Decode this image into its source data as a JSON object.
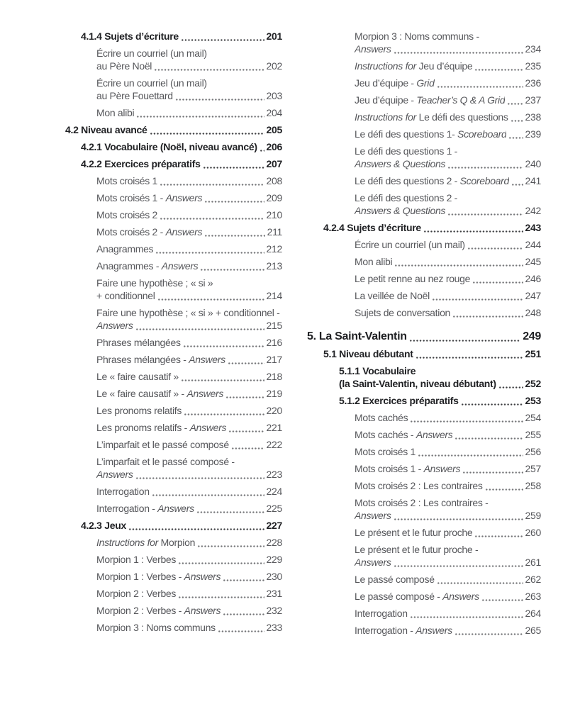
{
  "colors": {
    "background": "#ffffff",
    "body_text": "#55565a",
    "heading_text": "#202124",
    "leader_dot": "#737477",
    "leader_dot_bold": "#3c3d40"
  },
  "toc": {
    "columns": [
      {
        "name": "left",
        "entries": [
          {
            "level": 2,
            "bold": true,
            "lines": [
              [
                {
                  "t": "4.1.4 Sujets d’écriture"
                }
              ]
            ],
            "page": "201"
          },
          {
            "level": 3,
            "lines": [
              [
                {
                  "t": "Écrire un courriel (un mail)"
                }
              ],
              [
                {
                  "t": "au Père Noël"
                }
              ]
            ],
            "page": "202"
          },
          {
            "level": 3,
            "lines": [
              [
                {
                  "t": "Écrire un courriel (un mail)"
                }
              ],
              [
                {
                  "t": "au Père Fouettard"
                }
              ]
            ],
            "page": "203"
          },
          {
            "level": 3,
            "lines": [
              [
                {
                  "t": "Mon alibi"
                }
              ]
            ],
            "page": "204"
          },
          {
            "level": 1,
            "bold": true,
            "lines": [
              [
                {
                  "t": "4.2 Niveau avancé"
                }
              ]
            ],
            "page": "205"
          },
          {
            "level": 2,
            "bold": true,
            "lines": [
              [
                {
                  "t": "4.2.1 Vocabulaire (Noël, niveau avancé)"
                }
              ]
            ],
            "page": "206"
          },
          {
            "level": 2,
            "bold": true,
            "lines": [
              [
                {
                  "t": "4.2.2 Exercices préparatifs"
                }
              ]
            ],
            "page": "207"
          },
          {
            "level": 3,
            "lines": [
              [
                {
                  "t": "Mots croisés 1"
                }
              ]
            ],
            "page": "208"
          },
          {
            "level": 3,
            "lines": [
              [
                {
                  "t": "Mots croisés 1 - "
                },
                {
                  "t": "Answers",
                  "i": true
                }
              ]
            ],
            "page": "209"
          },
          {
            "level": 3,
            "lines": [
              [
                {
                  "t": "Mots croisés 2"
                }
              ]
            ],
            "page": "210"
          },
          {
            "level": 3,
            "lines": [
              [
                {
                  "t": "Mots croisés 2 - "
                },
                {
                  "t": "Answers",
                  "i": true
                }
              ]
            ],
            "page": "211"
          },
          {
            "level": 3,
            "lines": [
              [
                {
                  "t": "Anagrammes"
                }
              ]
            ],
            "page": "212"
          },
          {
            "level": 3,
            "lines": [
              [
                {
                  "t": "Anagrammes - "
                },
                {
                  "t": "Answers",
                  "i": true
                }
              ]
            ],
            "page": "213"
          },
          {
            "level": 3,
            "lines": [
              [
                {
                  "t": "Faire une hypothèse ; « si »"
                }
              ],
              [
                {
                  "t": "+ conditionnel"
                }
              ]
            ],
            "page": "214"
          },
          {
            "level": 3,
            "lines": [
              [
                {
                  "t": "Faire une hypothèse ; « si » + conditionnel -"
                }
              ],
              [
                {
                  "t": "Answers",
                  "i": true
                }
              ]
            ],
            "page": "215"
          },
          {
            "level": 3,
            "lines": [
              [
                {
                  "t": "Phrases mélangées"
                }
              ]
            ],
            "page": "216"
          },
          {
            "level": 3,
            "lines": [
              [
                {
                  "t": "Phrases mélangées - "
                },
                {
                  "t": "Answers",
                  "i": true
                }
              ]
            ],
            "page": "217"
          },
          {
            "level": 3,
            "lines": [
              [
                {
                  "t": "Le « faire causatif »"
                }
              ]
            ],
            "page": "218"
          },
          {
            "level": 3,
            "lines": [
              [
                {
                  "t": "Le « faire causatif » - "
                },
                {
                  "t": "Answers",
                  "i": true
                }
              ]
            ],
            "page": "219"
          },
          {
            "level": 3,
            "lines": [
              [
                {
                  "t": "Les pronoms relatifs"
                }
              ]
            ],
            "page": "220"
          },
          {
            "level": 3,
            "lines": [
              [
                {
                  "t": "Les pronoms relatifs - "
                },
                {
                  "t": "Answers",
                  "i": true
                }
              ]
            ],
            "page": "221"
          },
          {
            "level": 3,
            "lines": [
              [
                {
                  "t": "L’imparfait et le passé composé"
                }
              ]
            ],
            "page": "222"
          },
          {
            "level": 3,
            "lines": [
              [
                {
                  "t": "L’imparfait et le passé composé -"
                }
              ],
              [
                {
                  "t": "Answers",
                  "i": true
                }
              ]
            ],
            "page": "223"
          },
          {
            "level": 3,
            "lines": [
              [
                {
                  "t": "Interrogation"
                }
              ]
            ],
            "page": "224"
          },
          {
            "level": 3,
            "lines": [
              [
                {
                  "t": "Interrogation - "
                },
                {
                  "t": "Answers",
                  "i": true
                }
              ]
            ],
            "page": "225"
          },
          {
            "level": 2,
            "bold": true,
            "lines": [
              [
                {
                  "t": "4.2.3 Jeux"
                }
              ]
            ],
            "page": "227"
          },
          {
            "level": 3,
            "lines": [
              [
                {
                  "t": "Instructions for",
                  "i": true
                },
                {
                  "t": " Morpion"
                }
              ]
            ],
            "page": "228"
          },
          {
            "level": 3,
            "lines": [
              [
                {
                  "t": "Morpion 1 : Verbes"
                }
              ]
            ],
            "page": "229"
          },
          {
            "level": 3,
            "lines": [
              [
                {
                  "t": "Morpion 1 : Verbes - "
                },
                {
                  "t": "Answers",
                  "i": true
                }
              ]
            ],
            "page": "230"
          },
          {
            "level": 3,
            "lines": [
              [
                {
                  "t": "Morpion 2 : Verbes"
                }
              ]
            ],
            "page": "231"
          },
          {
            "level": 3,
            "lines": [
              [
                {
                  "t": "Morpion 2 : Verbes - "
                },
                {
                  "t": "Answers",
                  "i": true
                }
              ]
            ],
            "page": "232"
          },
          {
            "level": 3,
            "lines": [
              [
                {
                  "t": "Morpion 3 : Noms communs"
                }
              ]
            ],
            "page": "233"
          }
        ]
      },
      {
        "name": "right",
        "entries": [
          {
            "level": 3,
            "lines": [
              [
                {
                  "t": "Morpion 3 : Noms communs -"
                }
              ],
              [
                {
                  "t": "Answers",
                  "i": true
                }
              ]
            ],
            "page": "234"
          },
          {
            "level": 3,
            "lines": [
              [
                {
                  "t": "Instructions for",
                  "i": true
                },
                {
                  "t": " Jeu d’équipe"
                }
              ]
            ],
            "page": "235"
          },
          {
            "level": 3,
            "lines": [
              [
                {
                  "t": "Jeu d’équipe - "
                },
                {
                  "t": "Grid",
                  "i": true
                }
              ]
            ],
            "page": "236"
          },
          {
            "level": 3,
            "lines": [
              [
                {
                  "t": "Jeu d’équipe - "
                },
                {
                  "t": "Teacher’s Q & A Grid",
                  "i": true
                }
              ]
            ],
            "page": "237"
          },
          {
            "level": 3,
            "lines": [
              [
                {
                  "t": "Instructions for",
                  "i": true
                },
                {
                  "t": " Le défi des questions"
                }
              ]
            ],
            "page": "238"
          },
          {
            "level": 3,
            "lines": [
              [
                {
                  "t": "Le défi des questions 1- "
                },
                {
                  "t": "Scoreboard",
                  "i": true
                }
              ]
            ],
            "page": "239"
          },
          {
            "level": 3,
            "lines": [
              [
                {
                  "t": "Le défi des questions 1 -"
                }
              ],
              [
                {
                  "t": "Answers & Questions",
                  "i": true
                }
              ]
            ],
            "page": "240"
          },
          {
            "level": 3,
            "lines": [
              [
                {
                  "t": "Le défi des questions 2 - "
                },
                {
                  "t": "Scoreboard",
                  "i": true
                }
              ]
            ],
            "page": "241"
          },
          {
            "level": 3,
            "lines": [
              [
                {
                  "t": "Le défi des questions 2 -"
                }
              ],
              [
                {
                  "t": "Answers & Questions",
                  "i": true
                }
              ]
            ],
            "page": "242"
          },
          {
            "level": 1,
            "bold": true,
            "lines": [
              [
                {
                  "t": "4.2.4 Sujets d’écriture"
                }
              ]
            ],
            "page": "243"
          },
          {
            "level": 3,
            "lines": [
              [
                {
                  "t": "Écrire un courriel (un mail)"
                }
              ]
            ],
            "page": "244"
          },
          {
            "level": 3,
            "lines": [
              [
                {
                  "t": "Mon alibi"
                }
              ]
            ],
            "page": "245"
          },
          {
            "level": 3,
            "lines": [
              [
                {
                  "t": "Le petit renne au nez rouge"
                }
              ]
            ],
            "page": "246"
          },
          {
            "level": 3,
            "lines": [
              [
                {
                  "t": "La veillée de Noël"
                }
              ]
            ],
            "page": "247"
          },
          {
            "level": 3,
            "lines": [
              [
                {
                  "t": "Sujets de conversation"
                }
              ]
            ],
            "page": "248"
          },
          {
            "level": 0,
            "bold": true,
            "gap": true,
            "lines": [
              [
                {
                  "t": "5. La Saint-Valentin"
                }
              ]
            ],
            "page": "249"
          },
          {
            "level": 1,
            "bold": true,
            "lines": [
              [
                {
                  "t": "5.1 Niveau débutant"
                }
              ]
            ],
            "page": "251"
          },
          {
            "level": 2,
            "bold": true,
            "lines": [
              [
                {
                  "t": "5.1.1 Vocabulaire"
                }
              ],
              [
                {
                  "t": "(la Saint-Valentin, niveau débutant)"
                }
              ]
            ],
            "page": "252"
          },
          {
            "level": 2,
            "bold": true,
            "lines": [
              [
                {
                  "t": "5.1.2 Exercices préparatifs"
                }
              ]
            ],
            "page": "253"
          },
          {
            "level": 3,
            "lines": [
              [
                {
                  "t": "Mots cachés"
                }
              ]
            ],
            "page": "254"
          },
          {
            "level": 3,
            "lines": [
              [
                {
                  "t": "Mots cachés - "
                },
                {
                  "t": "Answers",
                  "i": true
                }
              ]
            ],
            "page": "255"
          },
          {
            "level": 3,
            "lines": [
              [
                {
                  "t": "Mots croisés 1"
                }
              ]
            ],
            "page": "256"
          },
          {
            "level": 3,
            "lines": [
              [
                {
                  "t": "Mots croisés 1 - "
                },
                {
                  "t": "Answers",
                  "i": true
                }
              ]
            ],
            "page": "257"
          },
          {
            "level": 3,
            "lines": [
              [
                {
                  "t": "Mots croisés 2 : Les contraires"
                }
              ]
            ],
            "page": "258"
          },
          {
            "level": 3,
            "lines": [
              [
                {
                  "t": "Mots croisés 2 : Les contraires -"
                }
              ],
              [
                {
                  "t": "Answers",
                  "i": true
                }
              ]
            ],
            "page": "259"
          },
          {
            "level": 3,
            "lines": [
              [
                {
                  "t": "Le présent et le futur proche"
                }
              ]
            ],
            "page": "260"
          },
          {
            "level": 3,
            "lines": [
              [
                {
                  "t": "Le présent et le futur proche -"
                }
              ],
              [
                {
                  "t": "Answers",
                  "i": true
                }
              ]
            ],
            "page": "261"
          },
          {
            "level": 3,
            "lines": [
              [
                {
                  "t": "Le passé composé"
                }
              ]
            ],
            "page": "262"
          },
          {
            "level": 3,
            "lines": [
              [
                {
                  "t": "Le passé composé - "
                },
                {
                  "t": "Answers",
                  "i": true
                }
              ]
            ],
            "page": "263"
          },
          {
            "level": 3,
            "lines": [
              [
                {
                  "t": "Interrogation"
                }
              ]
            ],
            "page": "264"
          },
          {
            "level": 3,
            "lines": [
              [
                {
                  "t": "Interrogation - "
                },
                {
                  "t": "Answers",
                  "i": true
                }
              ]
            ],
            "page": "265"
          }
        ]
      }
    ]
  }
}
